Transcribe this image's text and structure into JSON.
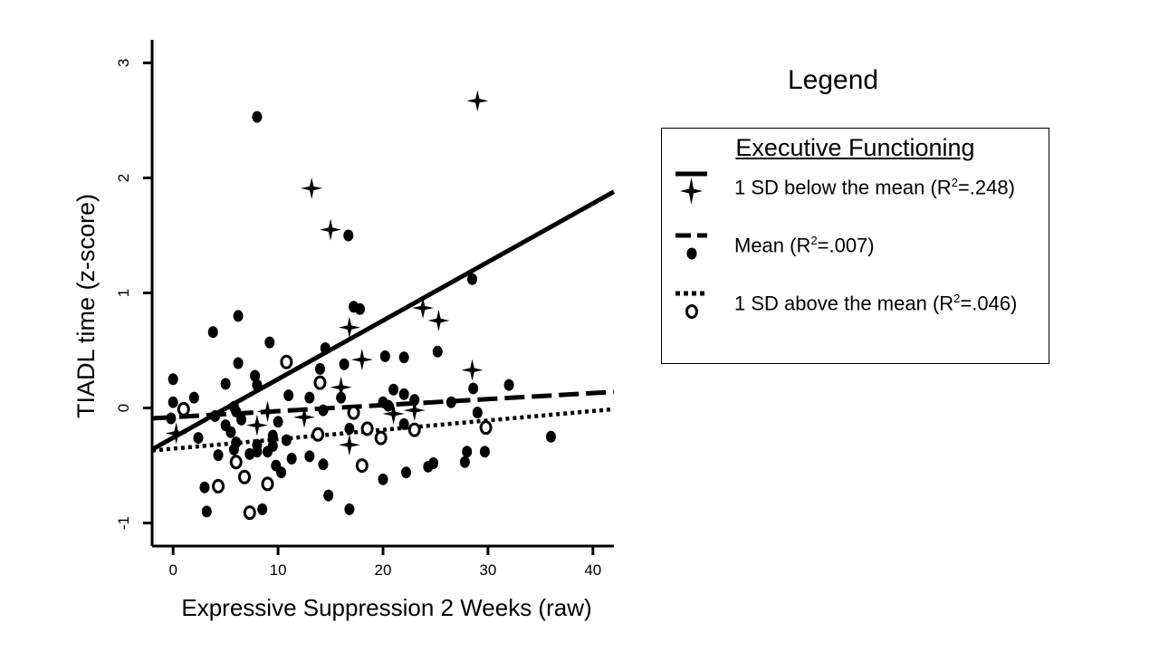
{
  "chart_data": {
    "type": "scatter",
    "xlabel": "Expressive Suppression 2 Weeks (raw)",
    "ylabel": "TIADL time (z-score)",
    "xlim": [
      -2,
      42
    ],
    "ylim": [
      -1.2,
      3.2
    ],
    "xticks": [
      0,
      10,
      20,
      30,
      40
    ],
    "yticks": [
      -1,
      0,
      1,
      2,
      3
    ],
    "grid": false,
    "legend": {
      "title": "Legend",
      "heading": "Executive Functioning",
      "placement": "right"
    },
    "series": [
      {
        "name": "1 SD below the mean",
        "r2_prefix": "(R",
        "r2_sup": "2",
        "r2_value": "=.248)",
        "marker": "star",
        "line": "solid",
        "fit": {
          "x0": -2,
          "y0": -0.36,
          "x1": 42,
          "y1": 1.88
        },
        "points": [
          {
            "x": 29,
            "y": 2.67
          },
          {
            "x": 13.2,
            "y": 1.91
          },
          {
            "x": 15,
            "y": 1.55
          },
          {
            "x": 23.8,
            "y": 0.87
          },
          {
            "x": 25.3,
            "y": 0.76
          },
          {
            "x": 16.8,
            "y": 0.7
          },
          {
            "x": 18,
            "y": 0.42
          },
          {
            "x": 28.5,
            "y": 0.33
          },
          {
            "x": 16,
            "y": 0.18
          },
          {
            "x": 9,
            "y": -0.03
          },
          {
            "x": 21,
            "y": -0.05
          },
          {
            "x": 12.5,
            "y": -0.08
          },
          {
            "x": 8,
            "y": -0.15
          },
          {
            "x": 23,
            "y": -0.02
          },
          {
            "x": 16.8,
            "y": -0.32
          },
          {
            "x": 0.3,
            "y": -0.22
          }
        ]
      },
      {
        "name": "Mean",
        "r2_prefix": "(R",
        "r2_sup": "2",
        "r2_value": "=.007)",
        "marker": "dot",
        "line": "dashed",
        "fit": {
          "x0": -2,
          "y0": -0.09,
          "x1": 42,
          "y1": 0.14
        },
        "points": [
          {
            "x": 8,
            "y": 2.53
          },
          {
            "x": 16.7,
            "y": 1.5
          },
          {
            "x": 28.5,
            "y": 1.12
          },
          {
            "x": 17.2,
            "y": 0.88
          },
          {
            "x": 17.8,
            "y": 0.86
          },
          {
            "x": 6.2,
            "y": 0.8
          },
          {
            "x": 3.8,
            "y": 0.66
          },
          {
            "x": 9.2,
            "y": 0.57
          },
          {
            "x": 14.5,
            "y": 0.52
          },
          {
            "x": 25.2,
            "y": 0.49
          },
          {
            "x": 20.2,
            "y": 0.45
          },
          {
            "x": 22,
            "y": 0.44
          },
          {
            "x": 6.2,
            "y": 0.39
          },
          {
            "x": 16.3,
            "y": 0.38
          },
          {
            "x": 14,
            "y": 0.34
          },
          {
            "x": 7.8,
            "y": 0.28
          },
          {
            "x": 0,
            "y": 0.25
          },
          {
            "x": 5,
            "y": 0.21
          },
          {
            "x": 8,
            "y": 0.2
          },
          {
            "x": 32,
            "y": 0.2
          },
          {
            "x": 21,
            "y": 0.16
          },
          {
            "x": 28.6,
            "y": 0.17
          },
          {
            "x": 11,
            "y": 0.11
          },
          {
            "x": 22,
            "y": 0.12
          },
          {
            "x": 2,
            "y": 0.09
          },
          {
            "x": 13,
            "y": 0.09
          },
          {
            "x": 16,
            "y": 0.09
          },
          {
            "x": 0,
            "y": 0.05
          },
          {
            "x": 20,
            "y": 0.05
          },
          {
            "x": 23,
            "y": 0.07
          },
          {
            "x": 26.5,
            "y": 0.05
          },
          {
            "x": 5.8,
            "y": 0.01
          },
          {
            "x": 20.5,
            "y": 0.02
          },
          {
            "x": 29,
            "y": -0.04
          },
          {
            "x": 14.3,
            "y": -0.02
          },
          {
            "x": 4,
            "y": -0.07
          },
          {
            "x": -0.2,
            "y": -0.09
          },
          {
            "x": 6.5,
            "y": -0.1
          },
          {
            "x": 10,
            "y": -0.12
          },
          {
            "x": 5,
            "y": -0.15
          },
          {
            "x": 22,
            "y": -0.14
          },
          {
            "x": 16.8,
            "y": -0.18
          },
          {
            "x": 5.5,
            "y": -0.21
          },
          {
            "x": 2.4,
            "y": -0.26
          },
          {
            "x": 9.5,
            "y": -0.24
          },
          {
            "x": 6,
            "y": -0.3
          },
          {
            "x": 10.8,
            "y": -0.28
          },
          {
            "x": 8,
            "y": -0.32
          },
          {
            "x": 9.5,
            "y": -0.33
          },
          {
            "x": 5.8,
            "y": -0.36
          },
          {
            "x": 7.3,
            "y": -0.4
          },
          {
            "x": 8,
            "y": -0.38
          },
          {
            "x": 9,
            "y": -0.38
          },
          {
            "x": 4.3,
            "y": -0.41
          },
          {
            "x": 13,
            "y": -0.42
          },
          {
            "x": 11.3,
            "y": -0.44
          },
          {
            "x": 28,
            "y": -0.38
          },
          {
            "x": 29.7,
            "y": -0.38
          },
          {
            "x": 9.8,
            "y": -0.5
          },
          {
            "x": 14.3,
            "y": -0.49
          },
          {
            "x": 24.8,
            "y": -0.48
          },
          {
            "x": 24.3,
            "y": -0.51
          },
          {
            "x": 27.8,
            "y": -0.47
          },
          {
            "x": 10.3,
            "y": -0.56
          },
          {
            "x": 22.2,
            "y": -0.56
          },
          {
            "x": 20,
            "y": -0.62
          },
          {
            "x": 3,
            "y": -0.69
          },
          {
            "x": 14.8,
            "y": -0.76
          },
          {
            "x": 3.2,
            "y": -0.9
          },
          {
            "x": 8.5,
            "y": -0.88
          },
          {
            "x": 16.8,
            "y": -0.88
          },
          {
            "x": 36,
            "y": -0.25
          },
          {
            "x": 6,
            "y": -0.03
          }
        ]
      },
      {
        "name": "1 SD above the mean",
        "r2_prefix": "(R",
        "r2_sup": "2",
        "r2_value": "=.046)",
        "marker": "ring",
        "line": "dotted",
        "fit": {
          "x0": -2,
          "y0": -0.37,
          "x1": 42,
          "y1": -0.01
        },
        "points": [
          {
            "x": 10.8,
            "y": 0.4
          },
          {
            "x": 14,
            "y": 0.22
          },
          {
            "x": 1,
            "y": -0.01
          },
          {
            "x": 17.2,
            "y": -0.04
          },
          {
            "x": 18.5,
            "y": -0.18
          },
          {
            "x": 23,
            "y": -0.19
          },
          {
            "x": 29.8,
            "y": -0.17
          },
          {
            "x": 13.8,
            "y": -0.23
          },
          {
            "x": 19.8,
            "y": -0.26
          },
          {
            "x": 6,
            "y": -0.47
          },
          {
            "x": 18,
            "y": -0.5
          },
          {
            "x": 6.8,
            "y": -0.6
          },
          {
            "x": 9,
            "y": -0.66
          },
          {
            "x": 4.3,
            "y": -0.68
          },
          {
            "x": 7.3,
            "y": -0.91
          }
        ]
      }
    ]
  }
}
